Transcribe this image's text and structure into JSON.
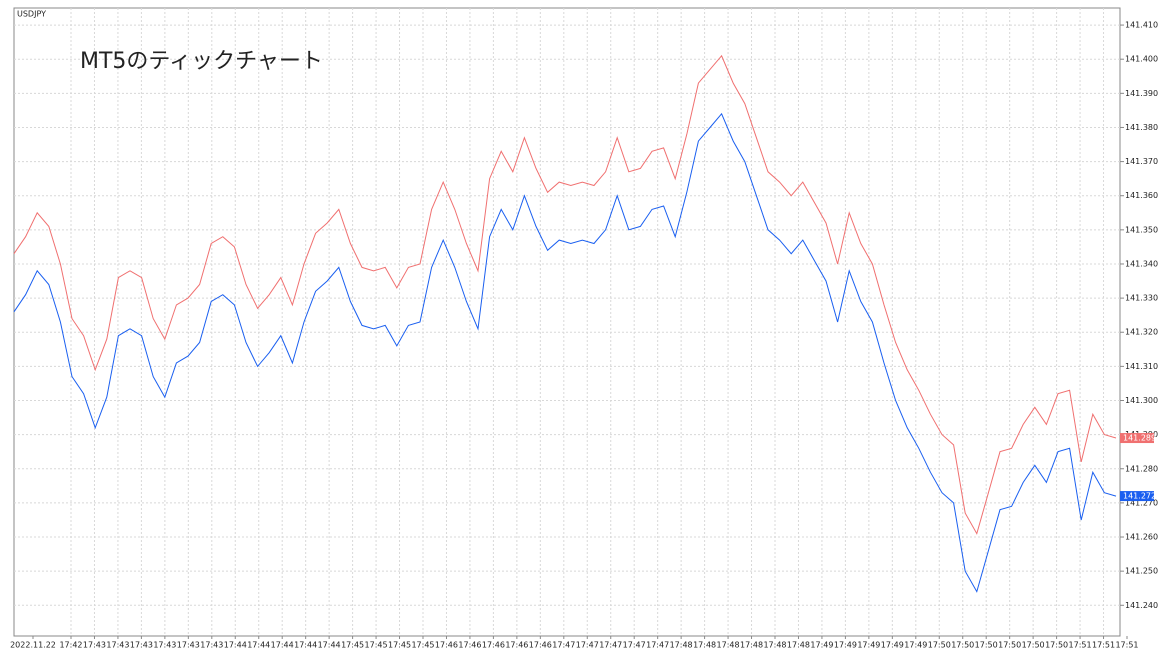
{
  "chart_data": {
    "type": "line",
    "title": "USDJPY",
    "annotation": "MT5のティックチャート",
    "time_labels": [
      "2022.11.22",
      "17:42",
      "17:43",
      "17:43",
      "17:43",
      "17:43",
      "17:43",
      "17:43",
      "17:44",
      "17:44",
      "17:44",
      "17:44",
      "17:44",
      "17:45",
      "17:45",
      "17:45",
      "17:45",
      "17:46",
      "17:46",
      "17:46",
      "17:46",
      "17:46",
      "17:47",
      "17:47",
      "17:47",
      "17:47",
      "17:47",
      "17:48",
      "17:48",
      "17:48",
      "17:48",
      "17:48",
      "17:48",
      "17:49",
      "17:49",
      "17:49",
      "17:49",
      "17:49",
      "17:50",
      "17:50",
      "17:50",
      "17:50",
      "17:50",
      "17:50",
      "17:51",
      "17:51",
      "17:51"
    ],
    "series": [
      {
        "color": "#f07070",
        "values": [
          141.343,
          141.348,
          141.355,
          141.351,
          141.34,
          141.324,
          141.319,
          141.309,
          141.318,
          141.336,
          141.338,
          141.336,
          141.324,
          141.318,
          141.328,
          141.33,
          141.334,
          141.346,
          141.348,
          141.345,
          141.334,
          141.327,
          141.331,
          141.336,
          141.328,
          141.34,
          141.349,
          141.352,
          141.356,
          141.346,
          141.339,
          141.338,
          141.339,
          141.333,
          141.339,
          141.34,
          141.356,
          141.364,
          141.356,
          141.346,
          141.338,
          141.365,
          141.373,
          141.367,
          141.377,
          141.368,
          141.361,
          141.364,
          141.363,
          141.364,
          141.363,
          141.367,
          141.377,
          141.367,
          141.368,
          141.373,
          141.374,
          141.365,
          141.378,
          141.393,
          141.397,
          141.401,
          141.393,
          141.387,
          141.377,
          141.367,
          141.364,
          141.36,
          141.364,
          141.358,
          141.352,
          141.34,
          141.355,
          141.346,
          141.34,
          141.328,
          141.317,
          141.309,
          141.303,
          141.296,
          141.29,
          141.287,
          141.267,
          141.261,
          141.273,
          141.285,
          141.286,
          141.293,
          141.298,
          141.293,
          141.302,
          141.303,
          141.282,
          141.296,
          141.29,
          141.289
        ]
      },
      {
        "color": "#1a5ff0",
        "values": [
          141.326,
          141.331,
          141.338,
          141.334,
          141.323,
          141.307,
          141.302,
          141.292,
          141.301,
          141.319,
          141.321,
          141.319,
          141.307,
          141.301,
          141.311,
          141.313,
          141.317,
          141.329,
          141.331,
          141.328,
          141.317,
          141.31,
          141.314,
          141.319,
          141.311,
          141.323,
          141.332,
          141.335,
          141.339,
          141.329,
          141.322,
          141.321,
          141.322,
          141.316,
          141.322,
          141.323,
          141.339,
          141.347,
          141.339,
          141.329,
          141.321,
          141.348,
          141.356,
          141.35,
          141.36,
          141.351,
          141.344,
          141.347,
          141.346,
          141.347,
          141.346,
          141.35,
          141.36,
          141.35,
          141.351,
          141.356,
          141.357,
          141.348,
          141.361,
          141.376,
          141.38,
          141.384,
          141.376,
          141.37,
          141.36,
          141.35,
          141.347,
          141.343,
          141.347,
          141.341,
          141.335,
          141.323,
          141.338,
          141.329,
          141.323,
          141.311,
          141.3,
          141.292,
          141.286,
          141.279,
          141.273,
          141.27,
          141.25,
          141.244,
          141.256,
          141.268,
          141.269,
          141.276,
          141.281,
          141.276,
          141.285,
          141.286,
          141.265,
          141.279,
          141.273,
          141.272
        ]
      }
    ],
    "ylim": [
      141.231,
      141.415
    ],
    "yticks": [
      {
        "value": 141.24,
        "label": "141.240"
      },
      {
        "value": 141.25,
        "label": "141.250"
      },
      {
        "value": 141.26,
        "label": "141.260"
      },
      {
        "value": 141.27,
        "label": "141.270"
      },
      {
        "value": 141.28,
        "label": "141.280"
      },
      {
        "value": 141.29,
        "label": "141.290"
      },
      {
        "value": 141.3,
        "label": "141.300"
      },
      {
        "value": 141.31,
        "label": "141.310"
      },
      {
        "value": 141.32,
        "label": "141.320"
      },
      {
        "value": 141.33,
        "label": "141.330"
      },
      {
        "value": 141.34,
        "label": "141.340"
      },
      {
        "value": 141.35,
        "label": "141.350"
      },
      {
        "value": 141.36,
        "label": "141.360"
      },
      {
        "value": 141.37,
        "label": "141.370"
      },
      {
        "value": 141.38,
        "label": "141.380"
      },
      {
        "value": 141.39,
        "label": "141.390"
      },
      {
        "value": 141.4,
        "label": "141.400"
      },
      {
        "value": 141.41,
        "label": "141.410"
      }
    ],
    "grid": true
  }
}
